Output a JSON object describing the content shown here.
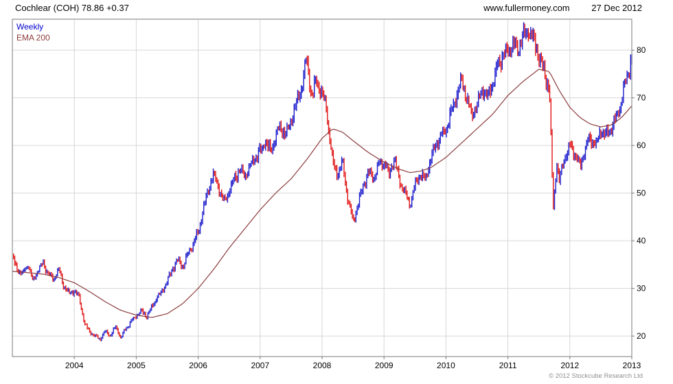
{
  "header": {
    "title": "Cochlear (COH) 78.86 +0.37",
    "website": "www.fullermoney.com",
    "date": "27 Dec 2012"
  },
  "legend": {
    "series1": "Weekly",
    "series2": "EMA 200"
  },
  "footer": {
    "copyright": "© 2012 Stockcube Research Ltd"
  },
  "chart_data": {
    "type": "candlestick",
    "title": "Cochlear (COH)",
    "interval": "Weekly",
    "overlay": "EMA 200",
    "last_price": 78.86,
    "change": "+0.37",
    "x_axis": {
      "ticks": [
        2004,
        2005,
        2006,
        2007,
        2008,
        2009,
        2010,
        2011,
        2012,
        2013
      ],
      "range": [
        2003,
        2013
      ]
    },
    "y_axis": {
      "side": "right",
      "ticks": [
        20,
        30,
        40,
        50,
        60,
        70,
        80
      ],
      "range": [
        15.7,
        86.5
      ]
    },
    "grid": true,
    "legend_position": "top-left",
    "colors": {
      "up": "#1a1acd",
      "down": "#e21212",
      "ema": "#8b3a3a",
      "grid": "#d6d6d6",
      "border": "#7a7a7a",
      "legend_weekly": "#0000cc",
      "legend_ema": "#8b3a3a"
    },
    "price_anchors": [
      [
        2003.0,
        36.5
      ],
      [
        2003.08,
        34.0
      ],
      [
        2003.17,
        33.0
      ],
      [
        2003.25,
        35.0
      ],
      [
        2003.33,
        31.5
      ],
      [
        2003.42,
        34.0
      ],
      [
        2003.5,
        35.5
      ],
      [
        2003.58,
        33.0
      ],
      [
        2003.67,
        32.0
      ],
      [
        2003.75,
        34.0
      ],
      [
        2003.83,
        30.5
      ],
      [
        2003.92,
        29.0
      ],
      [
        2004.0,
        29.5
      ],
      [
        2004.08,
        28.0
      ],
      [
        2004.17,
        22.5
      ],
      [
        2004.25,
        21.0
      ],
      [
        2004.33,
        20.0
      ],
      [
        2004.42,
        19.5
      ],
      [
        2004.5,
        21.0
      ],
      [
        2004.58,
        20.2
      ],
      [
        2004.67,
        22.0
      ],
      [
        2004.75,
        19.6
      ],
      [
        2004.83,
        21.5
      ],
      [
        2004.92,
        23.2
      ],
      [
        2005.0,
        24.2
      ],
      [
        2005.08,
        25.2
      ],
      [
        2005.17,
        24.2
      ],
      [
        2005.25,
        26.0
      ],
      [
        2005.33,
        28.0
      ],
      [
        2005.42,
        29.5
      ],
      [
        2005.5,
        31.5
      ],
      [
        2005.58,
        34.0
      ],
      [
        2005.67,
        36.0
      ],
      [
        2005.75,
        34.5
      ],
      [
        2005.83,
        37.0
      ],
      [
        2005.92,
        39.5
      ],
      [
        2006.0,
        41.5
      ],
      [
        2006.08,
        46.5
      ],
      [
        2006.17,
        51.0
      ],
      [
        2006.25,
        54.0
      ],
      [
        2006.33,
        51.0
      ],
      [
        2006.42,
        48.0
      ],
      [
        2006.5,
        50.5
      ],
      [
        2006.58,
        53.0
      ],
      [
        2006.67,
        55.0
      ],
      [
        2006.75,
        53.5
      ],
      [
        2006.83,
        55.5
      ],
      [
        2006.92,
        57.5
      ],
      [
        2007.0,
        58.5
      ],
      [
        2007.08,
        61.0
      ],
      [
        2007.17,
        58.5
      ],
      [
        2007.25,
        62.0
      ],
      [
        2007.33,
        64.0
      ],
      [
        2007.42,
        62.0
      ],
      [
        2007.5,
        65.5
      ],
      [
        2007.58,
        68.5
      ],
      [
        2007.67,
        72.5
      ],
      [
        2007.75,
        78.0
      ],
      [
        2007.83,
        70.5
      ],
      [
        2007.92,
        73.5
      ],
      [
        2008.0,
        71.0
      ],
      [
        2008.08,
        66.5
      ],
      [
        2008.17,
        56.5
      ],
      [
        2008.25,
        54.0
      ],
      [
        2008.33,
        56.5
      ],
      [
        2008.42,
        48.5
      ],
      [
        2008.5,
        44.0
      ],
      [
        2008.58,
        47.5
      ],
      [
        2008.67,
        52.0
      ],
      [
        2008.75,
        54.5
      ],
      [
        2008.83,
        53.0
      ],
      [
        2008.92,
        56.0
      ],
      [
        2009.0,
        56.5
      ],
      [
        2009.08,
        54.0
      ],
      [
        2009.17,
        57.0
      ],
      [
        2009.25,
        52.5
      ],
      [
        2009.33,
        50.0
      ],
      [
        2009.42,
        47.5
      ],
      [
        2009.5,
        51.5
      ],
      [
        2009.58,
        54.0
      ],
      [
        2009.67,
        53.0
      ],
      [
        2009.75,
        57.0
      ],
      [
        2009.83,
        60.0
      ],
      [
        2009.92,
        62.0
      ],
      [
        2010.0,
        63.5
      ],
      [
        2010.08,
        66.5
      ],
      [
        2010.17,
        70.5
      ],
      [
        2010.25,
        73.5
      ],
      [
        2010.33,
        70.5
      ],
      [
        2010.42,
        66.0
      ],
      [
        2010.5,
        68.5
      ],
      [
        2010.58,
        72.0
      ],
      [
        2010.67,
        70.0
      ],
      [
        2010.75,
        73.0
      ],
      [
        2010.83,
        76.5
      ],
      [
        2010.92,
        79.0
      ],
      [
        2011.0,
        79.5
      ],
      [
        2011.08,
        81.5
      ],
      [
        2011.17,
        80.0
      ],
      [
        2011.25,
        83.0
      ],
      [
        2011.33,
        84.5
      ],
      [
        2011.42,
        82.0
      ],
      [
        2011.5,
        78.5
      ],
      [
        2011.58,
        75.5
      ],
      [
        2011.67,
        72.0
      ],
      [
        2011.73,
        46.5
      ],
      [
        2011.79,
        56.5
      ],
      [
        2011.83,
        52.5
      ],
      [
        2011.92,
        57.5
      ],
      [
        2012.0,
        60.0
      ],
      [
        2012.08,
        58.0
      ],
      [
        2012.17,
        55.5
      ],
      [
        2012.25,
        59.5
      ],
      [
        2012.33,
        61.5
      ],
      [
        2012.42,
        60.0
      ],
      [
        2012.5,
        63.0
      ],
      [
        2012.58,
        62.0
      ],
      [
        2012.67,
        64.0
      ],
      [
        2012.75,
        65.5
      ],
      [
        2012.83,
        69.0
      ],
      [
        2012.92,
        74.5
      ],
      [
        2013.0,
        78.86
      ]
    ],
    "ema_anchors": [
      [
        2003.0,
        33.6
      ],
      [
        2003.25,
        33.3
      ],
      [
        2003.5,
        33.0
      ],
      [
        2003.75,
        32.3
      ],
      [
        2004.0,
        31.2
      ],
      [
        2004.25,
        29.3
      ],
      [
        2004.5,
        27.2
      ],
      [
        2004.75,
        25.4
      ],
      [
        2005.0,
        24.4
      ],
      [
        2005.25,
        23.9
      ],
      [
        2005.5,
        24.7
      ],
      [
        2005.75,
        26.8
      ],
      [
        2006.0,
        30.0
      ],
      [
        2006.25,
        34.0
      ],
      [
        2006.5,
        38.5
      ],
      [
        2006.75,
        42.5
      ],
      [
        2007.0,
        46.5
      ],
      [
        2007.25,
        50.0
      ],
      [
        2007.5,
        53.0
      ],
      [
        2007.75,
        57.0
      ],
      [
        2008.0,
        61.5
      ],
      [
        2008.17,
        63.5
      ],
      [
        2008.33,
        62.8
      ],
      [
        2008.5,
        61.0
      ],
      [
        2008.75,
        58.5
      ],
      [
        2009.0,
        56.5
      ],
      [
        2009.25,
        55.0
      ],
      [
        2009.42,
        54.3
      ],
      [
        2009.58,
        54.6
      ],
      [
        2009.75,
        55.3
      ],
      [
        2010.0,
        57.5
      ],
      [
        2010.25,
        60.5
      ],
      [
        2010.5,
        63.5
      ],
      [
        2010.75,
        66.5
      ],
      [
        2011.0,
        70.5
      ],
      [
        2011.25,
        73.5
      ],
      [
        2011.5,
        76.0
      ],
      [
        2011.67,
        75.5
      ],
      [
        2011.83,
        71.5
      ],
      [
        2012.0,
        68.0
      ],
      [
        2012.17,
        65.8
      ],
      [
        2012.33,
        64.5
      ],
      [
        2012.5,
        63.9
      ],
      [
        2012.67,
        64.3
      ],
      [
        2012.83,
        65.8
      ],
      [
        2013.0,
        68.3
      ]
    ]
  }
}
